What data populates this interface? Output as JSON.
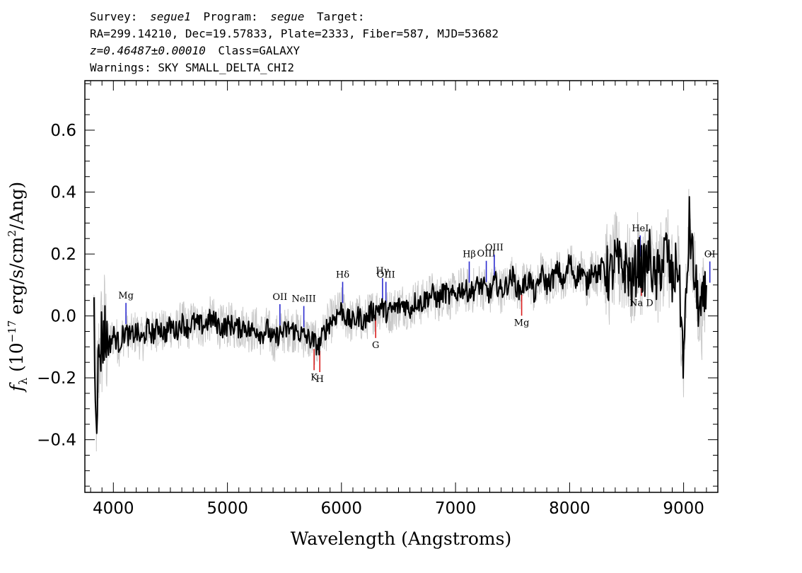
{
  "header": {
    "survey_label": "Survey:",
    "survey_value": "segue1",
    "program_label": "Program:",
    "program_value": "segue",
    "target_label": "Target:",
    "line2": "RA=299.14210, Dec=19.57833, Plate=2333, Fiber=587, MJD=53682",
    "redshift": "z=0.46487±0.00010",
    "class_text": "Class=GALAXY",
    "warnings": "Warnings: SKY SMALL_DELTA_CHI2"
  },
  "chart_data": {
    "type": "line",
    "title": "",
    "xlabel": "Wavelength (Angstroms)",
    "ylabel": "f_λ (10^-17 erg/s/cm^2/Ang)",
    "xlim": [
      3750,
      9300
    ],
    "ylim": [
      -0.57,
      0.76
    ],
    "x_ticks": [
      4000,
      5000,
      6000,
      7000,
      8000,
      9000
    ],
    "y_ticks": [
      -0.4,
      -0.2,
      0.0,
      0.2,
      0.4,
      0.6
    ],
    "y_tick_labels": [
      "−0.4",
      "−0.2",
      "0.0",
      "0.2",
      "0.4",
      "0.6"
    ],
    "grid": false,
    "series": [
      {
        "color": "#000000",
        "x": [
          3830,
          3850,
          3880,
          3920,
          3960,
          4000,
          4050,
          4100,
          4150,
          4200,
          4250,
          4300,
          4350,
          4400,
          4450,
          4500,
          4550,
          4600,
          4650,
          4700,
          4750,
          4800,
          4850,
          4900,
          4950,
          5000,
          5050,
          5100,
          5150,
          5200,
          5250,
          5300,
          5350,
          5400,
          5450,
          5500,
          5550,
          5600,
          5650,
          5700,
          5750,
          5800,
          5850,
          5900,
          5950,
          6000,
          6050,
          6100,
          6150,
          6200,
          6250,
          6300,
          6350,
          6400,
          6450,
          6500,
          6550,
          6600,
          6650,
          6700,
          6750,
          6800,
          6850,
          6900,
          6950,
          7000,
          7050,
          7100,
          7150,
          7200,
          7250,
          7300,
          7350,
          7400,
          7450,
          7500,
          7550,
          7600,
          7650,
          7700,
          7750,
          7800,
          7850,
          7900,
          7950,
          8000,
          8050,
          8100,
          8150,
          8200,
          8250,
          8300,
          8350,
          8400,
          8450,
          8500,
          8550,
          8600,
          8650,
          8700,
          8750,
          8800,
          8850,
          8900,
          8950,
          9000,
          9050,
          9100,
          9150,
          9200
        ],
        "y": [
          0.0,
          -0.3,
          -0.1,
          -0.05,
          -0.1,
          -0.06,
          -0.09,
          -0.05,
          -0.07,
          -0.05,
          -0.08,
          -0.04,
          -0.06,
          -0.03,
          -0.06,
          -0.03,
          -0.05,
          -0.02,
          -0.04,
          -0.02,
          -0.03,
          -0.03,
          -0.01,
          -0.02,
          -0.04,
          -0.03,
          -0.03,
          -0.04,
          -0.03,
          -0.05,
          -0.04,
          -0.06,
          -0.04,
          -0.08,
          -0.06,
          -0.05,
          -0.04,
          -0.05,
          -0.06,
          -0.07,
          -0.08,
          -0.1,
          -0.05,
          -0.02,
          0.0,
          0.02,
          -0.01,
          -0.02,
          0.0,
          -0.02,
          0.01,
          0.02,
          0.03,
          0.01,
          0.02,
          0.03,
          0.04,
          0.02,
          0.05,
          0.04,
          0.06,
          0.07,
          0.05,
          0.08,
          0.06,
          0.07,
          0.09,
          0.08,
          0.08,
          0.1,
          0.09,
          0.07,
          0.11,
          0.08,
          0.1,
          0.13,
          0.08,
          0.1,
          0.12,
          0.06,
          0.14,
          0.1,
          0.12,
          0.15,
          0.1,
          0.18,
          0.12,
          0.15,
          0.1,
          0.16,
          0.13,
          0.17,
          0.12,
          0.18,
          0.15,
          0.16,
          0.1,
          0.18,
          0.14,
          0.2,
          0.1,
          0.16,
          0.22,
          0.1,
          0.18,
          -0.15,
          0.3,
          0.1,
          0.0,
          0.08
        ]
      }
    ],
    "error_band_color": "#c8c8c8",
    "line_markers": [
      {
        "label": "Mg",
        "x": 4110,
        "color": "#2b2bcf",
        "side": "above"
      },
      {
        "label": "OII",
        "x": 5460,
        "color": "#2b2bcf",
        "side": "above"
      },
      {
        "label": "NeIII",
        "x": 5670,
        "color": "#2b2bcf",
        "side": "above"
      },
      {
        "label": "Hδ",
        "x": 6010,
        "color": "#2b2bcf",
        "side": "above"
      },
      {
        "label": "Hγ",
        "x": 6360,
        "color": "#2b2bcf",
        "side": "above"
      },
      {
        "label": "OIII",
        "x": 6390,
        "color": "#2b2bcf",
        "side": "above"
      },
      {
        "label": "Hβ",
        "x": 7120,
        "color": "#2b2bcf",
        "side": "above"
      },
      {
        "label": "OIII",
        "x": 7270,
        "color": "#2b2bcf",
        "side": "above"
      },
      {
        "label": "OIII",
        "x": 7340,
        "color": "#2b2bcf",
        "side": "above"
      },
      {
        "label": "HeI",
        "x": 8620,
        "color": "#2b2bcf",
        "side": "above"
      },
      {
        "label": "OI",
        "x": 9230,
        "color": "#2b2bcf",
        "side": "above"
      },
      {
        "label": "K",
        "x": 5760,
        "color": "#d81e1e",
        "side": "below"
      },
      {
        "label": "H",
        "x": 5810,
        "color": "#d81e1e",
        "side": "below"
      },
      {
        "label": "G",
        "x": 6300,
        "color": "#d81e1e",
        "side": "below"
      },
      {
        "label": "Mg",
        "x": 7580,
        "color": "#d81e1e",
        "side": "below"
      },
      {
        "label": "Na D",
        "x": 8630,
        "color": "#d81e1e",
        "side": "below"
      }
    ]
  }
}
